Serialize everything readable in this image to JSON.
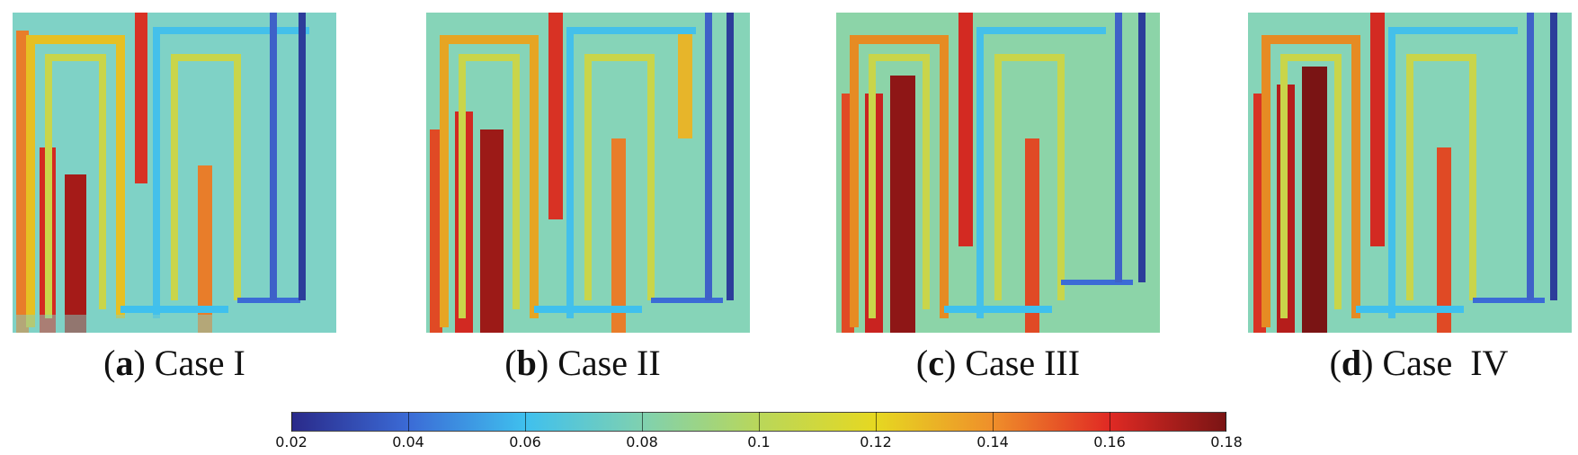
{
  "panels": [
    {
      "id": "a",
      "letter": "a",
      "label": "Case I"
    },
    {
      "id": "b",
      "letter": "b",
      "label": "Case II"
    },
    {
      "id": "c",
      "letter": "c",
      "label": "Case III"
    },
    {
      "id": "d",
      "letter": "d",
      "label": "Case  IV"
    }
  ],
  "colorbar": {
    "min": 0.02,
    "max": 0.18,
    "ticks": [
      "0.02",
      "0.04",
      "0.06",
      "0.08",
      "0.1",
      "0.12",
      "0.14",
      "0.16",
      "0.18"
    ],
    "colors": [
      "#2a2a8a",
      "#3b6bd6",
      "#3fc0ee",
      "#7fd1b0",
      "#b9d75a",
      "#e6d821",
      "#ef8f2a",
      "#e02a24",
      "#7a1414"
    ]
  }
}
